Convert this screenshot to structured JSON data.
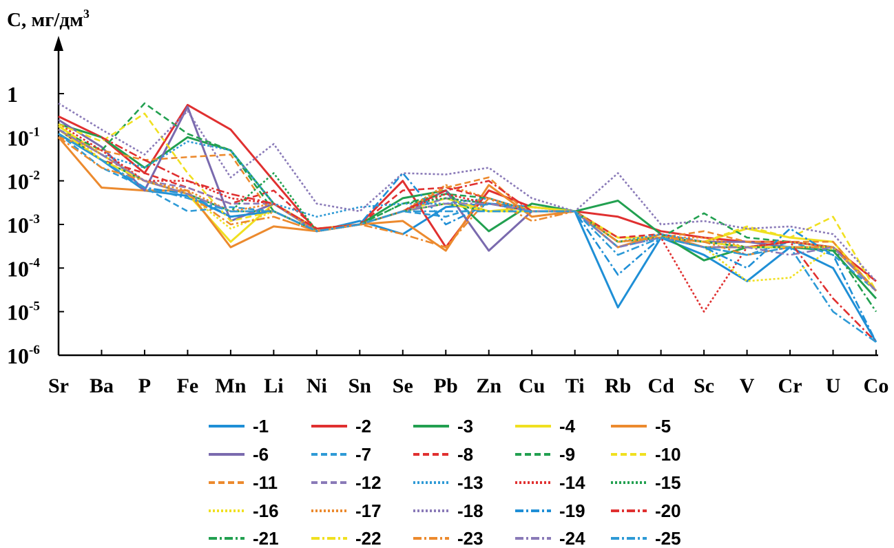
{
  "chart_data": {
    "type": "line",
    "ylabel": "C, мг/дм",
    "ylabel_superscript": "3",
    "yscale": "log",
    "ylim": [
      1e-06,
      1
    ],
    "y_ticks": [
      {
        "base": "1",
        "exp": ""
      },
      {
        "base": "10",
        "exp": "-1"
      },
      {
        "base": "10",
        "exp": "-2"
      },
      {
        "base": "10",
        "exp": "-3"
      },
      {
        "base": "10",
        "exp": "-4"
      },
      {
        "base": "10",
        "exp": "-5"
      },
      {
        "base": "10",
        "exp": "-6"
      }
    ],
    "categories": [
      "Sr",
      "Ba",
      "P",
      "Fe",
      "Mn",
      "Li",
      "Ni",
      "Sn",
      "Se",
      "Pb",
      "Zn",
      "Cu",
      "Ti",
      "Rb",
      "Cd",
      "Sc",
      "V",
      "Cr",
      "U",
      "Co"
    ],
    "legend_placement": "bottom",
    "grid": false,
    "series": [
      {
        "name": "-1",
        "color": "#1f8fd6",
        "dash": "solid",
        "values": [
          0.12,
          0.03,
          0.006,
          0.0045,
          0.0015,
          0.002,
          0.0007,
          0.0012,
          0.0006,
          0.0025,
          0.003,
          0.0025,
          0.002,
          1.25e-05,
          0.0005,
          0.0002,
          5e-05,
          0.0003,
          0.0001,
          2e-06
        ]
      },
      {
        "name": "-2",
        "color": "#e03030",
        "dash": "solid",
        "values": [
          0.3,
          0.1,
          0.015,
          0.55,
          0.15,
          0.01,
          0.0007,
          0.001,
          0.01,
          0.0003,
          0.006,
          0.0025,
          0.002,
          0.0015,
          0.0007,
          0.0005,
          0.0004,
          0.0004,
          0.0003,
          5e-05
        ]
      },
      {
        "name": "-3",
        "color": "#22a050",
        "dash": "solid",
        "values": [
          0.2,
          0.1,
          0.02,
          0.1,
          0.05,
          0.003,
          0.0007,
          0.001,
          0.004,
          0.006,
          0.0007,
          0.003,
          0.002,
          0.0035,
          0.0006,
          0.00015,
          0.0003,
          0.0003,
          0.00025,
          2e-05
        ]
      },
      {
        "name": "-4",
        "color": "#f0e020",
        "dash": "solid",
        "values": [
          0.18,
          0.04,
          0.01,
          0.005,
          0.0004,
          0.003,
          0.0008,
          0.001,
          0.002,
          0.004,
          0.002,
          0.0025,
          0.002,
          0.0005,
          0.0005,
          0.0004,
          0.0008,
          0.0005,
          0.0004,
          3e-05
        ]
      },
      {
        "name": "-5",
        "color": "#ec8a2e",
        "dash": "solid",
        "values": [
          0.1,
          0.007,
          0.006,
          0.006,
          0.0003,
          0.0009,
          0.0007,
          0.001,
          0.0012,
          0.00025,
          0.008,
          0.0015,
          0.002,
          0.0003,
          0.0006,
          0.0003,
          0.0003,
          0.0004,
          0.0003,
          3e-05
        ]
      },
      {
        "name": "-6",
        "color": "#7a6aae",
        "dash": "solid",
        "values": [
          0.25,
          0.06,
          0.006,
          0.5,
          0.0012,
          0.003,
          0.0007,
          0.001,
          0.002,
          0.006,
          0.00025,
          0.002,
          0.002,
          0.0004,
          0.0005,
          0.0004,
          0.0004,
          0.0003,
          0.0003,
          3e-05
        ]
      },
      {
        "name": "-7",
        "color": "#2e9ad6",
        "dash": "dashed",
        "values": [
          0.12,
          0.02,
          0.007,
          0.002,
          0.0025,
          0.002,
          0.0007,
          0.001,
          0.002,
          0.0015,
          0.003,
          0.002,
          0.002,
          0.0003,
          0.0005,
          0.0003,
          0.0002,
          0.0004,
          0.0002,
          3e-05
        ]
      },
      {
        "name": "-8",
        "color": "#e03030",
        "dash": "dashed",
        "values": [
          0.15,
          0.03,
          0.015,
          0.007,
          0.003,
          0.006,
          0.0008,
          0.001,
          0.006,
          0.007,
          0.004,
          0.002,
          0.002,
          0.0005,
          0.0006,
          0.0004,
          0.0003,
          0.0003,
          0.0003,
          3e-05
        ]
      },
      {
        "name": "-9",
        "color": "#22a050",
        "dash": "dashed",
        "values": [
          0.15,
          0.05,
          0.6,
          0.12,
          0.05,
          0.002,
          0.0007,
          0.001,
          0.003,
          0.005,
          0.004,
          0.002,
          0.002,
          0.0004,
          0.0005,
          0.0018,
          0.0005,
          0.0004,
          0.0003,
          3e-05
        ]
      },
      {
        "name": "-10",
        "color": "#f0e020",
        "dash": "dashed",
        "values": [
          0.2,
          0.08,
          0.35,
          0.015,
          0.0012,
          0.002,
          0.0007,
          0.001,
          0.002,
          0.004,
          0.002,
          0.002,
          0.002,
          0.0004,
          0.0005,
          0.0004,
          0.0009,
          0.0005,
          0.0015,
          3e-05
        ]
      },
      {
        "name": "-11",
        "color": "#ec8a2e",
        "dash": "dashed",
        "values": [
          0.1,
          0.05,
          0.03,
          0.035,
          0.04,
          0.0015,
          0.0007,
          0.001,
          0.002,
          0.007,
          0.012,
          0.0015,
          0.002,
          0.0004,
          0.0005,
          0.0007,
          0.0004,
          0.0004,
          0.0004,
          3e-05
        ]
      },
      {
        "name": "-12",
        "color": "#8a7ab8",
        "dash": "dashed",
        "values": [
          0.15,
          0.04,
          0.01,
          0.007,
          0.003,
          0.003,
          0.0007,
          0.001,
          0.002,
          0.004,
          0.003,
          0.002,
          0.002,
          0.0004,
          0.0005,
          0.0004,
          0.0003,
          0.0004,
          0.0003,
          3e-05
        ]
      },
      {
        "name": "-13",
        "color": "#2e9ad6",
        "dash": "dotted",
        "values": [
          0.15,
          0.04,
          0.02,
          0.08,
          0.05,
          0.003,
          0.0015,
          0.0025,
          0.003,
          0.003,
          0.004,
          0.002,
          0.002,
          0.0004,
          0.0006,
          0.0004,
          0.0003,
          0.0004,
          0.0003,
          3e-05
        ]
      },
      {
        "name": "-14",
        "color": "#e03030",
        "dash": "dotted",
        "values": [
          0.2,
          0.05,
          0.01,
          0.01,
          0.004,
          0.003,
          0.0008,
          0.001,
          0.002,
          0.005,
          0.003,
          0.002,
          0.002,
          0.0004,
          0.0005,
          1e-05,
          0.0003,
          0.0004,
          0.0003,
          3e-05
        ]
      },
      {
        "name": "-15",
        "color": "#22a050",
        "dash": "dotted",
        "values": [
          0.15,
          0.03,
          0.01,
          0.005,
          0.002,
          0.015,
          0.0007,
          0.001,
          0.003,
          0.004,
          0.003,
          0.002,
          0.002,
          0.0004,
          0.0005,
          0.0003,
          0.0003,
          0.0003,
          0.0003,
          3e-05
        ]
      },
      {
        "name": "-16",
        "color": "#f0e020",
        "dash": "dotted",
        "values": [
          0.2,
          0.03,
          0.01,
          0.005,
          0.0008,
          0.002,
          0.0007,
          0.001,
          0.002,
          0.003,
          0.002,
          0.002,
          0.002,
          0.0004,
          0.0005,
          0.0003,
          5e-05,
          6e-05,
          0.0003,
          3e-05
        ]
      },
      {
        "name": "-17",
        "color": "#ec8a2e",
        "dash": "dotted",
        "values": [
          0.15,
          0.04,
          0.01,
          0.006,
          0.002,
          0.003,
          0.0007,
          0.001,
          0.002,
          0.008,
          0.004,
          0.002,
          0.002,
          0.0004,
          0.0005,
          0.0005,
          0.0003,
          0.0004,
          0.0003,
          3e-05
        ]
      },
      {
        "name": "-18",
        "color": "#8a7ab8",
        "dash": "dotted",
        "values": [
          0.6,
          0.15,
          0.04,
          0.4,
          0.012,
          0.07,
          0.003,
          0.002,
          0.015,
          0.014,
          0.02,
          0.004,
          0.002,
          0.015,
          0.001,
          0.0012,
          0.0008,
          0.0009,
          0.0006,
          5e-05
        ]
      },
      {
        "name": "-19",
        "color": "#1f8fd6",
        "dash": "dashdot",
        "values": [
          0.12,
          0.03,
          0.007,
          0.005,
          0.0015,
          0.002,
          0.0007,
          0.001,
          0.015,
          0.001,
          0.003,
          0.002,
          0.002,
          7e-05,
          0.0005,
          0.0003,
          0.0001,
          0.0008,
          0.0002,
          2e-06
        ]
      },
      {
        "name": "-20",
        "color": "#e03030",
        "dash": "dashdot",
        "values": [
          0.3,
          0.1,
          0.03,
          0.01,
          0.005,
          0.003,
          0.0008,
          0.001,
          0.002,
          0.006,
          0.01,
          0.002,
          0.002,
          0.0004,
          0.0005,
          0.0004,
          0.0003,
          0.0004,
          2e-05,
          2e-06
        ]
      },
      {
        "name": "-21",
        "color": "#22a050",
        "dash": "dashdot",
        "values": [
          0.12,
          0.03,
          0.01,
          0.005,
          0.002,
          0.002,
          0.0007,
          0.001,
          0.002,
          0.003,
          0.002,
          0.002,
          0.002,
          0.0004,
          0.0005,
          0.0004,
          0.0003,
          0.0003,
          0.0003,
          1e-05
        ]
      },
      {
        "name": "-22",
        "color": "#f0e020",
        "dash": "dashdot",
        "values": [
          0.15,
          0.03,
          0.01,
          0.005,
          0.002,
          0.002,
          0.0007,
          0.001,
          0.002,
          0.003,
          0.002,
          0.002,
          0.002,
          0.0004,
          0.0005,
          0.0004,
          0.0003,
          0.0003,
          0.0003,
          3e-05
        ]
      },
      {
        "name": "-23",
        "color": "#ec8a2e",
        "dash": "dashdot",
        "values": [
          0.1,
          0.02,
          0.01,
          0.005,
          0.001,
          0.0015,
          0.0007,
          0.001,
          0.0006,
          0.0003,
          0.004,
          0.0012,
          0.002,
          0.0004,
          0.0005,
          0.0004,
          0.0002,
          0.0003,
          0.0003,
          3e-05
        ]
      },
      {
        "name": "-24",
        "color": "#8a7ab8",
        "dash": "dashdot",
        "values": [
          0.15,
          0.04,
          0.01,
          0.005,
          0.002,
          0.002,
          0.0007,
          0.001,
          0.002,
          0.003,
          0.003,
          0.002,
          0.002,
          0.0003,
          0.0005,
          0.0003,
          0.0003,
          0.0002,
          0.0003,
          3e-05
        ]
      },
      {
        "name": "-25",
        "color": "#2e9ad6",
        "dash": "dashdot",
        "values": [
          0.12,
          0.03,
          0.007,
          0.004,
          0.002,
          0.002,
          0.0007,
          0.001,
          0.002,
          0.002,
          0.002,
          0.002,
          0.002,
          0.0002,
          0.0005,
          0.0003,
          0.0002,
          0.0003,
          1e-05,
          2e-06
        ]
      }
    ]
  }
}
